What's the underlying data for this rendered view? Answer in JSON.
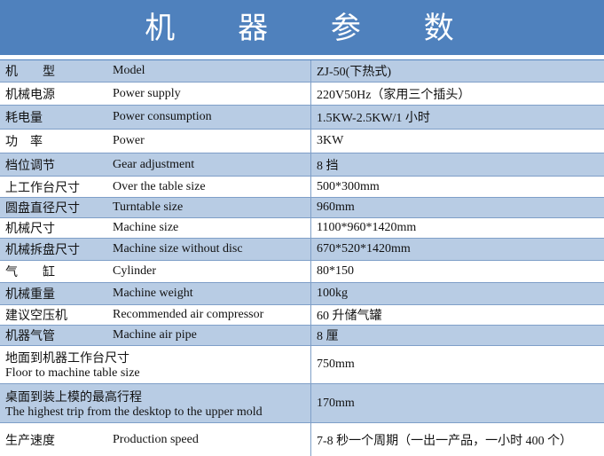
{
  "title": "机 器 参 数",
  "rows": [
    {
      "zh": "机　　型",
      "en": "Model",
      "value": "ZJ-50(下热式)",
      "h": 25
    },
    {
      "zh": "机械电源",
      "en": "Power supply",
      "value": "220V50Hz（家用三个插头）",
      "h": 26
    },
    {
      "zh": "耗电量",
      "en": "Power consumption",
      "value": "1.5KW-2.5KW/1 小时",
      "h": 27
    },
    {
      "zh": "功　率",
      "en": "Power",
      "value": "3KW",
      "h": 27
    },
    {
      "zh": "档位调节",
      "en": "Gear adjustment",
      "value": "8 挡",
      "h": 26
    },
    {
      "zh": "上工作台尺寸",
      "en": "Over the table size",
      "value": "500*300mm",
      "h": 24
    },
    {
      "zh": "圆盘直径尺寸",
      "en": "Turntable size",
      "value": "960mm",
      "h": 23
    },
    {
      "zh": "机械尺寸",
      "en": "Machine size",
      "value": "1100*960*1420mm",
      "h": 23
    },
    {
      "zh": "机械拆盘尺寸",
      "en": "Machine size without disc",
      "value": "670*520*1420mm",
      "h": 25
    },
    {
      "zh": "气　　缸",
      "en": "Cylinder",
      "value": "80*150",
      "h": 25
    },
    {
      "zh": "机械重量",
      "en": "Machine weight",
      "value": "100kg",
      "h": 25
    },
    {
      "zh": "建议空压机",
      "en": "Recommended air compressor",
      "value": "60 升储气罐",
      "h": 23
    },
    {
      "zh": "机器气管",
      "en": "Machine air pipe",
      "value": "8 厘",
      "h": 23
    }
  ],
  "tall_rows": [
    {
      "zh": "地面到机器工作台尺寸",
      "en": "Floor to machine table size",
      "value": "750mm"
    },
    {
      "zh": "桌面到装上模的最高行程",
      "en": "The highest trip from the desktop to the upper mold",
      "value": "170mm"
    }
  ],
  "last_row": {
    "zh": "生产速度",
    "en": "Production speed",
    "value": "7-8 秒一个周期（一出一产品，一小时 400 个）"
  }
}
